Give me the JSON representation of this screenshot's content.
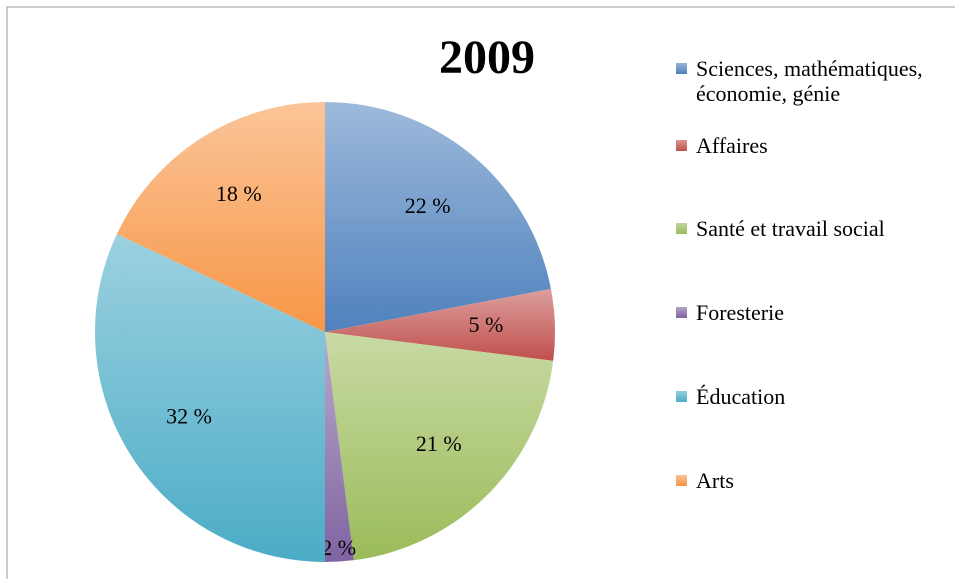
{
  "chart_data": {
    "type": "pie",
    "title": "2009",
    "categories": [
      "Sciences, mathématiques, économie, génie",
      "Affaires",
      "Santé et travail social",
      "Foresterie",
      "Éducation",
      "Arts"
    ],
    "values": [
      22,
      5,
      21,
      2,
      32,
      18
    ],
    "value_labels": [
      "22 %",
      "5 %",
      "21 %",
      "2 %",
      "32 %",
      "18 %"
    ],
    "colors": [
      "#4f81bd",
      "#c0504d",
      "#9bbb59",
      "#8064a2",
      "#4bacc6",
      "#f79646"
    ],
    "legend": "right"
  }
}
